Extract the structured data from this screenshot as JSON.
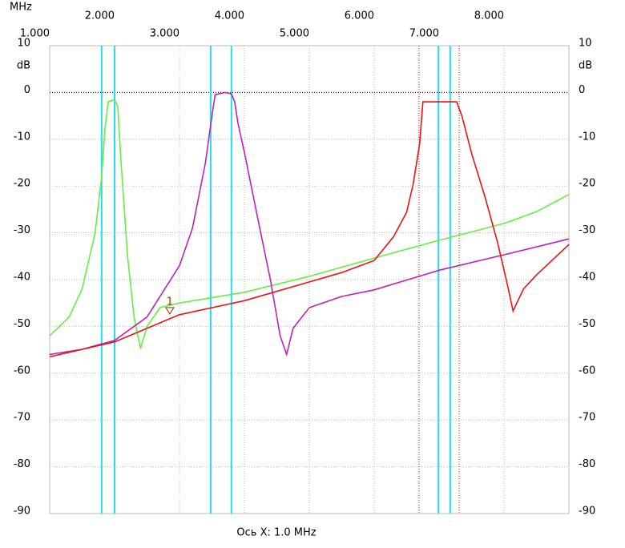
{
  "chart_data": {
    "type": "line",
    "x_unit": "MHz",
    "y_unit": "dB",
    "x_axis_note": "Ось X: 1.0 MHz",
    "xlim": [
      1,
      9
    ],
    "ylim": [
      -90,
      10
    ],
    "xticks": [
      {
        "value": 1,
        "label": "1.000"
      },
      {
        "value": 2,
        "label": "2.000"
      },
      {
        "value": 3,
        "label": "3.000"
      },
      {
        "value": 4,
        "label": "4.000"
      },
      {
        "value": 5,
        "label": "5.000"
      },
      {
        "value": 6,
        "label": "6.000"
      },
      {
        "value": 7,
        "label": "7.000"
      },
      {
        "value": 8,
        "label": "8.000"
      }
    ],
    "yticks": [
      10,
      0,
      -10,
      -20,
      -30,
      -40,
      -50,
      -60,
      -70,
      -80,
      -90
    ],
    "grid": true,
    "reference_y": 0,
    "series": [
      {
        "color": "#66ee44",
        "x": [
          1.0,
          1.3,
          1.5,
          1.7,
          1.8,
          1.85,
          1.9,
          2.0,
          2.05,
          2.1,
          2.2,
          2.3,
          2.4,
          2.5,
          2.7,
          3.0,
          4.0,
          5.0,
          6.0,
          7.0,
          8.0,
          8.5,
          9.0
        ],
        "values": [
          -52,
          -48,
          -42,
          -30,
          -18,
          -8,
          -2,
          -1.5,
          -3,
          -15,
          -35,
          -48,
          -54.7,
          -50,
          -46,
          -45,
          -42.7,
          -39.3,
          -35.4,
          -31.6,
          -28,
          -25.5,
          -21.8
        ]
      },
      {
        "color": "#bb22bb",
        "x": [
          1.0,
          1.5,
          2.0,
          2.5,
          3.0,
          3.2,
          3.4,
          3.5,
          3.55,
          3.7,
          3.8,
          3.85,
          3.9,
          4.0,
          4.2,
          4.4,
          4.55,
          4.65,
          4.75,
          5.0,
          5.5,
          6.0,
          7.0,
          8.0,
          9.0
        ],
        "values": [
          -56,
          -54.9,
          -53,
          -48,
          -37,
          -29,
          -15,
          -5,
          -0.5,
          0,
          -0.3,
          -2,
          -6.5,
          -12.8,
          -26.5,
          -40,
          -52,
          -56,
          -50.4,
          -46,
          -43.6,
          -42.2,
          -38,
          -34.7,
          -31.3
        ]
      },
      {
        "color": "#ee1111",
        "x": [
          1.0,
          2.0,
          3.0,
          4.0,
          5.0,
          5.5,
          6.0,
          6.3,
          6.5,
          6.6,
          6.7,
          6.75,
          7.27,
          7.35,
          7.5,
          7.7,
          7.9,
          8.05,
          8.14,
          8.3,
          8.5,
          9.0
        ],
        "values": [
          -56.5,
          -53.3,
          -47.5,
          -44.5,
          -40.5,
          -38.5,
          -35.9,
          -30.8,
          -25.6,
          -19.6,
          -11,
          -2,
          -2,
          -5,
          -13,
          -22,
          -32,
          -41,
          -46.7,
          -42,
          -39,
          -32.5
        ]
      }
    ],
    "vlines": [
      {
        "x": 1.8,
        "color": "#22ddee",
        "dotted": false
      },
      {
        "x": 2.0,
        "color": "#22ddee",
        "dotted": false
      },
      {
        "x": 3.48,
        "color": "#22ddee",
        "dotted": false
      },
      {
        "x": 3.8,
        "color": "#22ddee",
        "dotted": false
      },
      {
        "x": 6.99,
        "color": "#22ddee",
        "dotted": false
      },
      {
        "x": 7.17,
        "color": "#22ddee",
        "dotted": false
      },
      {
        "x": 6.69,
        "color": "#ee1111",
        "dotted": true
      },
      {
        "x": 7.31,
        "color": "#ee1111",
        "dotted": true
      }
    ],
    "markers": [
      {
        "label": "1",
        "x": 2.85,
        "y": -47
      }
    ]
  }
}
